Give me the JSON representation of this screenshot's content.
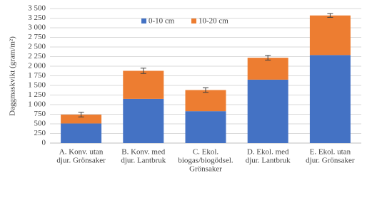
{
  "chart_data": {
    "type": "stacked-bar",
    "y_label": "Daggmaskvikt (gram/m²)",
    "categories": [
      [
        "A. Konv. utan",
        "djur. Grönsaker"
      ],
      [
        "B. Konv. med",
        "djur. Lantbruk"
      ],
      [
        "C. Ekol.",
        "biogas/biogödsel.",
        "Grönsaker"
      ],
      [
        "D. Ekol. med",
        "djur. Lantbruk"
      ],
      [
        "E. Ekol. utan",
        "djur. Grönsaker"
      ]
    ],
    "series": [
      {
        "name": "0-10 cm",
        "color": "#4472c4",
        "values": [
          510,
          1150,
          830,
          1650,
          2290
        ]
      },
      {
        "name": "10-20 cm",
        "color": "#ed7d31",
        "values": [
          230,
          730,
          550,
          570,
          1030
        ]
      }
    ],
    "errors": [
      60,
      70,
      60,
      60,
      50
    ],
    "ylim": [
      0,
      3500
    ],
    "yticks": [
      0,
      250,
      500,
      750,
      {
        "value": 1000,
        "label": "1 000"
      },
      {
        "value": 1250,
        "label": "1 250"
      },
      {
        "value": 1500,
        "label": "1 500"
      },
      {
        "value": 1750,
        "label": "1 750"
      },
      {
        "value": 2000,
        "label": "2 000"
      },
      {
        "value": 2250,
        "label": "2 250"
      },
      {
        "value": 2500,
        "label": "2 500"
      },
      {
        "value": 2750,
        "label": "2 750"
      },
      {
        "value": 3000,
        "label": "3 000"
      },
      {
        "value": 3250,
        "label": "3 250"
      },
      {
        "value": 3500,
        "label": "3 500"
      }
    ],
    "grid": true,
    "legend": "top"
  }
}
